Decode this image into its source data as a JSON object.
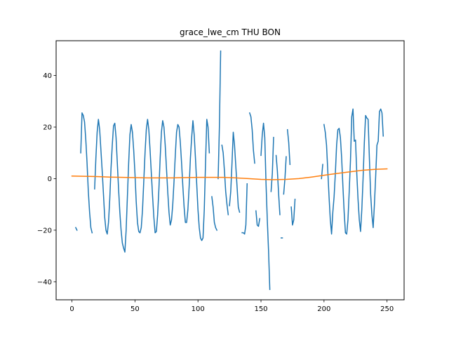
{
  "chart_data": {
    "type": "line",
    "title": "grace_lwe_cm THU BON",
    "xlabel": "",
    "ylabel": "",
    "xlim": [
      -12.55,
      263.55
    ],
    "ylim": [
      -47.0,
      53.5
    ],
    "xticks": [
      0,
      50,
      100,
      150,
      200,
      250
    ],
    "yticks": [
      -40,
      -20,
      0,
      20,
      40
    ],
    "grid": false,
    "legend": "none",
    "colors": {
      "series_1": "#1f77b4",
      "series_2": "#ff7f0e"
    },
    "series": [
      {
        "color": "#1f77b4",
        "segments": [
          [
            [
              3,
              -19
            ],
            [
              4,
              -20
            ]
          ],
          [
            [
              7,
              10
            ],
            [
              8,
              25.5
            ],
            [
              9,
              24.5
            ],
            [
              10,
              22
            ],
            [
              11,
              15
            ],
            [
              12,
              6
            ],
            [
              13,
              -5
            ],
            [
              14,
              -13
            ],
            [
              15,
              -19
            ],
            [
              16,
              -21
            ]
          ],
          [
            [
              18,
              -4
            ],
            [
              19,
              8
            ],
            [
              20,
              18
            ],
            [
              21,
              23
            ],
            [
              22,
              19
            ],
            [
              23,
              11
            ],
            [
              24,
              3
            ],
            [
              25,
              -6
            ],
            [
              26,
              -15
            ],
            [
              27,
              -20
            ],
            [
              28,
              -21.5
            ],
            [
              29,
              -17
            ],
            [
              30,
              -8
            ],
            [
              31,
              4
            ],
            [
              32,
              13
            ],
            [
              33,
              20.5
            ],
            [
              34,
              21.5
            ],
            [
              35,
              16
            ],
            [
              36,
              6
            ],
            [
              37,
              -4
            ],
            [
              38,
              -13
            ],
            [
              39,
              -20
            ],
            [
              40,
              -25
            ],
            [
              41,
              -27
            ],
            [
              42,
              -28.5
            ],
            [
              43,
              -20
            ],
            [
              44,
              -7
            ],
            [
              45,
              6
            ],
            [
              46,
              17
            ],
            [
              47,
              21
            ],
            [
              48,
              18
            ],
            [
              49,
              11
            ],
            [
              50,
              2
            ],
            [
              51,
              -9
            ],
            [
              52,
              -17
            ],
            [
              53,
              -20.5
            ],
            [
              54,
              -21
            ],
            [
              55,
              -19
            ],
            [
              56,
              -12
            ],
            [
              57,
              -1
            ],
            [
              58,
              10
            ],
            [
              59,
              19
            ],
            [
              60,
              23
            ],
            [
              61,
              19
            ],
            [
              62,
              11
            ],
            [
              63,
              2
            ],
            [
              64,
              -7
            ],
            [
              65,
              -15
            ],
            [
              66,
              -21
            ],
            [
              67,
              -20.5
            ],
            [
              68,
              -14
            ],
            [
              69,
              -4
            ],
            [
              70,
              8
            ],
            [
              71,
              18
            ],
            [
              72,
              22.5
            ],
            [
              73,
              20
            ],
            [
              74,
              13
            ],
            [
              75,
              4
            ],
            [
              76,
              -5
            ],
            [
              77,
              -13
            ],
            [
              78,
              -18
            ],
            [
              79,
              -16
            ],
            [
              80,
              -10
            ],
            [
              81,
              -1
            ],
            [
              82,
              9
            ],
            [
              83,
              18
            ],
            [
              84,
              21
            ],
            [
              85,
              20
            ],
            [
              86,
              14
            ],
            [
              87,
              6
            ],
            [
              88,
              -3
            ],
            [
              89,
              -11
            ],
            [
              90,
              -17
            ],
            [
              91,
              -17
            ],
            [
              92,
              -12
            ],
            [
              93,
              -3
            ],
            [
              94,
              8
            ],
            [
              95,
              16
            ],
            [
              96,
              22.5
            ],
            [
              97,
              17
            ],
            [
              98,
              8
            ],
            [
              99,
              -2
            ],
            [
              100,
              -12
            ],
            [
              101,
              -19
            ],
            [
              102,
              -23
            ],
            [
              103,
              -24
            ],
            [
              104,
              -23
            ],
            [
              105,
              -12
            ],
            [
              106,
              6
            ],
            [
              107,
              23
            ],
            [
              108,
              20
            ],
            [
              109,
              10
            ]
          ],
          [
            [
              111,
              -7
            ],
            [
              112,
              -11
            ],
            [
              113,
              -17
            ],
            [
              114,
              -19
            ],
            [
              115,
              -20
            ]
          ],
          [
            [
              116,
              0
            ],
            [
              117,
              20
            ],
            [
              118,
              49.5
            ]
          ],
          [
            [
              119,
              13
            ],
            [
              120,
              10
            ],
            [
              121,
              3
            ],
            [
              122,
              -5
            ],
            [
              123,
              -10
            ],
            [
              124,
              -14
            ]
          ],
          [
            [
              125,
              -10.5
            ],
            [
              126,
              -5
            ],
            [
              127,
              6
            ],
            [
              128,
              18
            ],
            [
              129,
              13
            ],
            [
              130,
              5
            ],
            [
              131,
              -3
            ],
            [
              132,
              -11
            ],
            [
              133,
              -13
            ]
          ],
          [
            [
              135,
              -21
            ],
            [
              136,
              -21
            ],
            [
              137,
              -21.5
            ],
            [
              138,
              -18
            ],
            [
              139,
              -2
            ]
          ],
          [
            [
              141,
              25.5
            ],
            [
              142,
              24
            ],
            [
              143,
              19
            ],
            [
              144,
              11
            ],
            [
              145,
              6
            ]
          ],
          [
            [
              146,
              -12.5
            ],
            [
              147,
              -18
            ],
            [
              148,
              -18.5
            ],
            [
              149,
              -15.5
            ]
          ],
          [
            [
              150,
              9
            ],
            [
              151,
              17
            ],
            [
              152,
              21.5
            ],
            [
              153,
              16
            ],
            [
              154,
              -2
            ],
            [
              155,
              -16
            ],
            [
              156,
              -28
            ],
            [
              157,
              -43
            ]
          ],
          [
            [
              158,
              -5
            ],
            [
              159,
              2
            ],
            [
              160,
              16
            ]
          ],
          [
            [
              162,
              9
            ],
            [
              163,
              3
            ],
            [
              164,
              -6
            ],
            [
              165,
              -14
            ]
          ],
          [
            [
              166,
              -23
            ],
            [
              167,
              -23
            ]
          ],
          [
            [
              168,
              -6
            ],
            [
              169,
              0
            ],
            [
              170,
              8.5
            ]
          ],
          [
            [
              171,
              19
            ],
            [
              172,
              14
            ],
            [
              173,
              5.5
            ]
          ],
          [
            [
              174,
              -11
            ],
            [
              175,
              -18
            ],
            [
              176,
              -16
            ],
            [
              177,
              -8
            ]
          ],
          [
            [
              198,
              0
            ],
            [
              199,
              5.5
            ]
          ],
          [
            [
              200,
              21
            ],
            [
              201,
              18
            ],
            [
              202,
              13
            ],
            [
              203,
              3
            ],
            [
              204,
              -7
            ],
            [
              205,
              -16
            ],
            [
              206,
              -21.5
            ],
            [
              207,
              -13
            ],
            [
              208,
              -7
            ],
            [
              209,
              2
            ],
            [
              210,
              13
            ],
            [
              211,
              19
            ],
            [
              212,
              19.5
            ],
            [
              213,
              16
            ],
            [
              214,
              8
            ],
            [
              215,
              -3
            ],
            [
              216,
              -13
            ],
            [
              217,
              -21
            ],
            [
              218,
              -21.5
            ],
            [
              219,
              -16
            ],
            [
              220,
              -5
            ],
            [
              221,
              7
            ],
            [
              222,
              24
            ],
            [
              223,
              27
            ],
            [
              224,
              14.5
            ],
            [
              225,
              15
            ],
            [
              226,
              2
            ],
            [
              227,
              -8
            ],
            [
              228,
              -16
            ],
            [
              229,
              -20.5
            ],
            [
              230,
              -12
            ],
            [
              231,
              0
            ],
            [
              232,
              14
            ],
            [
              233,
              24.5
            ],
            [
              234,
              23.5
            ],
            [
              235,
              23
            ],
            [
              236,
              8
            ],
            [
              237,
              -6
            ],
            [
              238,
              -14
            ],
            [
              239,
              -19
            ],
            [
              240,
              -10
            ],
            [
              241,
              1
            ],
            [
              242,
              13
            ],
            [
              243,
              14.5
            ],
            [
              244,
              26
            ],
            [
              245,
              27
            ],
            [
              246,
              25.5
            ],
            [
              247,
              16.5
            ]
          ]
        ]
      },
      {
        "color": "#ff7f0e",
        "segments": [
          [
            [
              0,
              1
            ],
            [
              10,
              0.9
            ],
            [
              20,
              0.8
            ],
            [
              30,
              0.6
            ],
            [
              40,
              0.5
            ],
            [
              50,
              0.4
            ],
            [
              60,
              0.3
            ],
            [
              70,
              0.3
            ],
            [
              80,
              0.3
            ],
            [
              90,
              0.4
            ],
            [
              100,
              0.5
            ],
            [
              110,
              0.5
            ],
            [
              120,
              0.5
            ],
            [
              130,
              0.3
            ],
            [
              140,
              0
            ],
            [
              150,
              -0.3
            ],
            [
              160,
              -0.4
            ],
            [
              170,
              -0.3
            ],
            [
              180,
              0
            ],
            [
              190,
              0.6
            ],
            [
              200,
              1.3
            ],
            [
              210,
              2
            ],
            [
              220,
              2.6
            ],
            [
              230,
              3.2
            ],
            [
              240,
              3.6
            ],
            [
              250,
              3.8
            ]
          ]
        ]
      }
    ]
  }
}
